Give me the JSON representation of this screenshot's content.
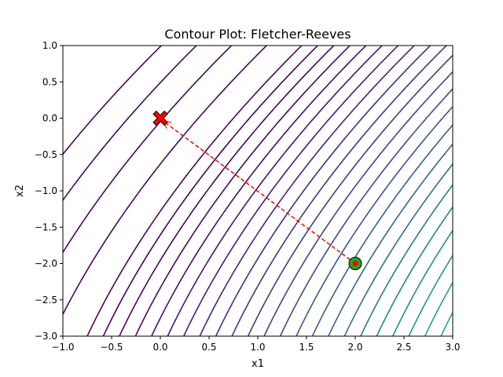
{
  "chart_data": {
    "type": "contour",
    "title": "Contour Plot: Fletcher-Reeves",
    "xlabel": "x1",
    "ylabel": "x2",
    "xlim": [
      -1.0,
      3.0
    ],
    "ylim": [
      -3.0,
      1.0
    ],
    "x_ticks": [
      "−1.0",
      "−0.5",
      "0.0",
      "0.5",
      "1.0",
      "1.5",
      "2.0",
      "2.5",
      "3.0"
    ],
    "x_tick_values": [
      -1.0,
      -0.5,
      0.0,
      0.5,
      1.0,
      1.5,
      2.0,
      2.5,
      3.0
    ],
    "y_ticks": [
      "1.0",
      "0.5",
      "0.0",
      "−0.5",
      "−1.0",
      "−1.5",
      "−2.0",
      "−2.5",
      "−3.0"
    ],
    "y_tick_values": [
      1.0,
      0.5,
      0.0,
      -0.5,
      -1.0,
      -1.5,
      -2.0,
      -2.5,
      -3.0
    ],
    "grid": false,
    "colormap": "viridis",
    "path": {
      "color": "#ff0000",
      "style": "dashed",
      "points": [
        [
          0.0,
          0.0
        ],
        [
          2.0,
          -2.0
        ]
      ]
    },
    "start_point": {
      "x": 2.0,
      "y": -2.0,
      "marker": "circle",
      "color": "#2ca02c"
    },
    "end_point": {
      "x": 0.0,
      "y": 0.0,
      "marker": "X",
      "color": "#ff0000"
    }
  }
}
